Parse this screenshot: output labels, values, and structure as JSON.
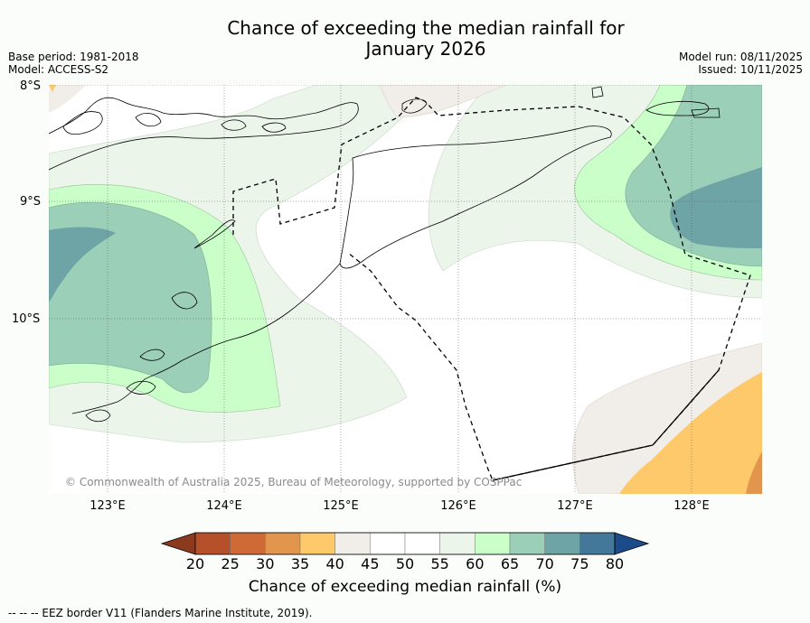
{
  "title": {
    "line1": "Chance of exceeding the median rainfall for",
    "line2": "January 2026"
  },
  "meta": {
    "base_period": "Base period: 1981-2018",
    "model": "Model: ACCESS-S2",
    "model_run": "Model run: 08/11/2025",
    "issued": "Issued: 10/11/2025"
  },
  "axes": {
    "lat_labels": [
      "8°S",
      "9°S",
      "10°S"
    ],
    "lon_labels": [
      "123°E",
      "124°E",
      "125°E",
      "126°E",
      "127°E",
      "128°E"
    ]
  },
  "copyright": "© Commonwealth of Australia 2025, Bureau of Meteorology, supported by COSPPac",
  "colorbar": {
    "title": "Chance of exceeding median rainfall (%)",
    "ticks": [
      "20",
      "25",
      "30",
      "35",
      "40",
      "45",
      "50",
      "55",
      "60",
      "65",
      "70",
      "75",
      "80"
    ],
    "colors": [
      "#8b3a1e",
      "#b5502a",
      "#cf6a36",
      "#e2954c",
      "#fdc96a",
      "#f1ede8",
      "#ffffff",
      "#ffffff",
      "#ebf5ea",
      "#caffc9",
      "#9ccfb8",
      "#6ea4a6",
      "#43789a",
      "#1b4b8a"
    ]
  },
  "legend_footer": "--  --  -- EEZ border V11 (Flanders Marine Institute, 2019)."
}
